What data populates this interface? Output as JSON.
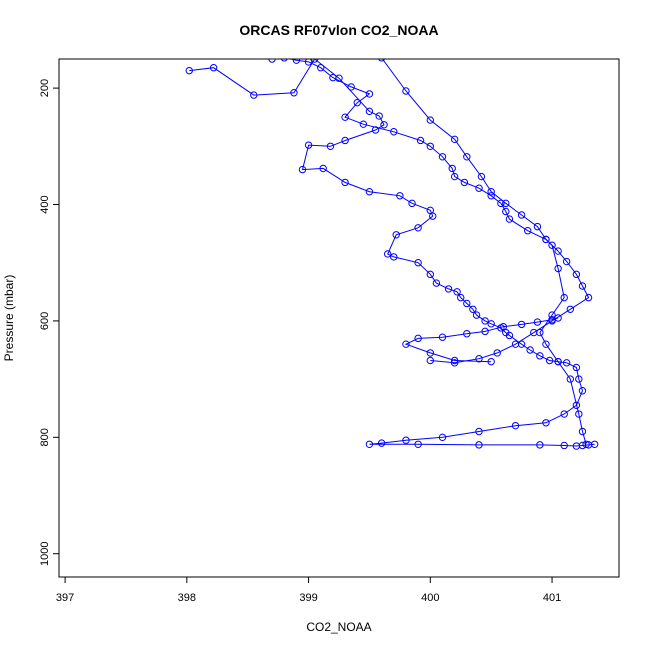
{
  "chart_data": {
    "type": "line",
    "title": "ORCAS RF07vlon CO2_NOAA",
    "xlabel": "CO2_NOAA",
    "ylabel": "Pressure (mbar)",
    "xlim": [
      396.95,
      401.55
    ],
    "ylim": [
      1040,
      150
    ],
    "y_reversed": true,
    "grid": false,
    "legend": "none",
    "xticks": [
      397,
      398,
      399,
      400,
      401
    ],
    "yticks": [
      200,
      400,
      600,
      800,
      1000
    ],
    "series": [
      {
        "color": "#0000ff",
        "marker": "open-circle",
        "x": [
          398.02,
          398.22,
          398.55,
          398.88,
          399.05,
          399.25,
          399.5,
          399.58,
          399.62,
          399.55,
          399.3,
          399.18,
          399.0,
          398.95,
          399.12,
          399.3,
          399.5,
          399.75,
          399.85,
          400.0,
          400.02,
          399.9,
          399.72,
          399.65,
          399.7,
          399.9,
          400.0,
          400.05,
          400.15,
          400.22,
          400.25,
          400.3,
          400.35,
          400.38,
          400.45,
          400.5,
          400.58,
          400.62,
          400.65,
          400.75,
          400.82,
          400.9,
          400.98,
          401.05,
          401.12,
          401.2,
          401.22,
          401.25,
          401.2,
          401.1,
          400.95,
          400.7,
          400.4,
          400.1,
          399.8,
          399.6,
          399.5,
          399.9,
          400.4,
          400.9,
          401.1,
          401.2,
          401.25,
          401.3,
          401.35
        ],
        "y": [
          170,
          165,
          212,
          208,
          150,
          183,
          240,
          248,
          263,
          272,
          290,
          300,
          298,
          340,
          338,
          362,
          378,
          385,
          398,
          410,
          420,
          440,
          452,
          485,
          490,
          500,
          520,
          535,
          545,
          550,
          560,
          570,
          580,
          590,
          600,
          605,
          612,
          620,
          625,
          640,
          650,
          660,
          668,
          670,
          672,
          680,
          700,
          720,
          745,
          760,
          775,
          780,
          790,
          800,
          805,
          810,
          812,
          812,
          813,
          813,
          814,
          815,
          814,
          813,
          812
        ]
      },
      {
        "color": "#0000ff",
        "marker": "open-circle",
        "x": [
          398.7,
          398.8,
          398.9,
          399.0,
          399.1,
          399.2,
          399.35,
          399.5,
          399.4,
          399.3,
          399.45,
          399.7,
          399.92,
          400.0,
          400.1,
          400.18,
          400.2,
          400.28,
          400.4,
          400.5,
          400.58,
          400.62,
          400.65,
          400.8,
          400.95,
          401.05,
          401.12,
          401.2,
          401.25,
          401.3,
          401.15,
          401.0,
          400.85,
          400.7,
          400.55,
          400.4,
          400.2,
          400.0
        ],
        "y": [
          150,
          148,
          152,
          155,
          165,
          182,
          198,
          210,
          225,
          250,
          262,
          275,
          290,
          300,
          318,
          338,
          352,
          362,
          372,
          385,
          398,
          412,
          425,
          445,
          460,
          480,
          498,
          520,
          540,
          560,
          580,
          600,
          620,
          640,
          655,
          665,
          672,
          668
        ]
      },
      {
        "color": "#0000ff",
        "marker": "open-circle",
        "x": [
          399.6,
          399.8,
          400.0,
          400.2,
          400.3,
          400.42,
          400.5,
          400.62,
          400.75,
          400.88,
          400.95,
          401.0,
          401.05,
          401.1,
          401.0,
          400.9,
          400.95,
          401.05,
          401.15,
          401.22,
          401.25,
          401.28
        ],
        "y": [
          148,
          205,
          255,
          288,
          318,
          352,
          378,
          398,
          418,
          438,
          460,
          470,
          510,
          560,
          590,
          620,
          640,
          670,
          700,
          760,
          790,
          812
        ]
      },
      {
        "color": "#0000ff",
        "marker": "open-circle",
        "x": [
          400.5,
          400.2,
          400.0,
          399.8,
          399.9,
          400.1,
          400.3,
          400.45,
          400.6,
          400.75,
          400.88,
          401.0,
          401.05
        ],
        "y": [
          670,
          668,
          655,
          640,
          630,
          628,
          622,
          618,
          610,
          606,
          602,
          598,
          595
        ]
      }
    ]
  }
}
